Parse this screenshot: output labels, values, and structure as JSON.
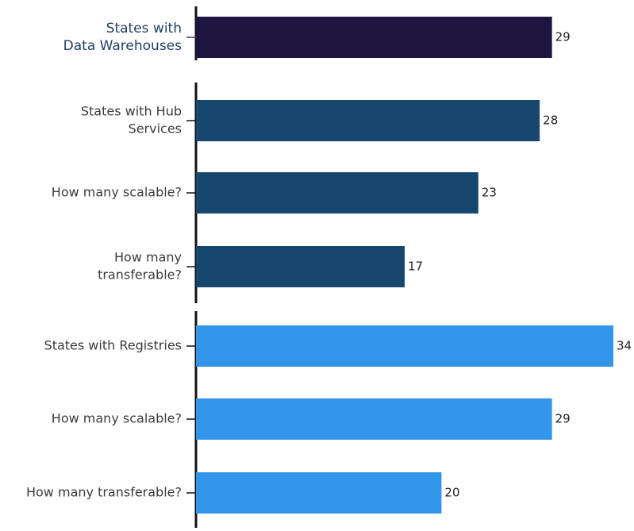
{
  "chart_data": {
    "type": "bar",
    "orientation": "horizontal",
    "title": "",
    "xlabel": "",
    "ylabel": "",
    "xlim": [
      0,
      34
    ],
    "grid": false,
    "legend": "none",
    "groups": [
      {
        "color": "#1e1640",
        "label_color": "#1f3f66",
        "bars": [
          {
            "label": [
              "States with",
              "Data Warehouses"
            ],
            "value": 29
          }
        ]
      },
      {
        "color": "#17476f",
        "label_color": "#3b3b3b",
        "bars": [
          {
            "label": [
              "States with Hub",
              "Services"
            ],
            "value": 28
          },
          {
            "label": [
              "How many scalable?"
            ],
            "value": 23
          },
          {
            "label": [
              "How many",
              "transferable?"
            ],
            "value": 17
          }
        ]
      },
      {
        "color": "#3395ea",
        "label_color": "#3b3b3b",
        "bars": [
          {
            "label": [
              "States with Registries"
            ],
            "value": 34
          },
          {
            "label": [
              "How many scalable?"
            ],
            "value": 29
          },
          {
            "label": [
              "How many transferable?"
            ],
            "value": 20
          }
        ]
      }
    ],
    "colors": {
      "axis": "#111111",
      "value_text": "#222222",
      "warehouse_tick": "#5a2a6a"
    }
  }
}
